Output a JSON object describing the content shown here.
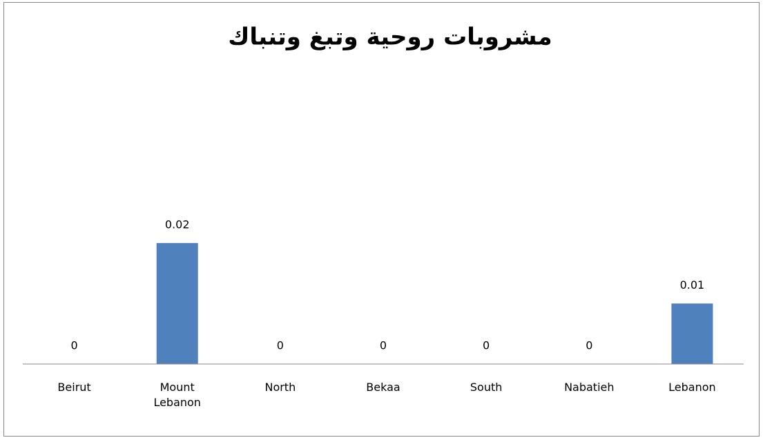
{
  "chart_data": {
    "type": "bar",
    "title": "مشروبات روحية وتبغ وتنباك",
    "categories": [
      "Beirut",
      "Mount Lebanon",
      "North",
      "Bekaa",
      "South",
      "Nabatieh",
      "Lebanon"
    ],
    "values": [
      0,
      0.02,
      0,
      0,
      0,
      0,
      0.01
    ],
    "color": "#4f81bd",
    "ylim": [
      0,
      0.025
    ]
  }
}
